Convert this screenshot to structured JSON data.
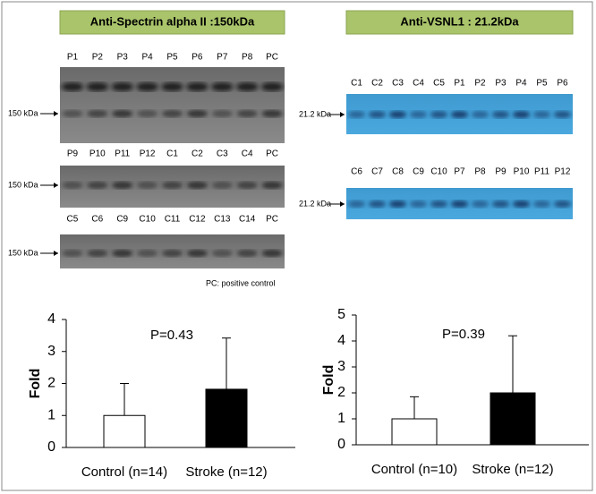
{
  "blots": [
    {
      "header": "Anti-Spectrin alpha II :150kDa",
      "rows": [
        {
          "lanes": [
            "P1",
            "P2",
            "P3",
            "P4",
            "P5",
            "P6",
            "P7",
            "P8",
            "PC"
          ],
          "marker": "150 kDa"
        },
        {
          "lanes": [
            "P9",
            "P10",
            "P11",
            "P12",
            "C1",
            "C2",
            "C3",
            "C4",
            "PC"
          ],
          "marker": "150 kDa"
        },
        {
          "lanes": [
            "C5",
            "C6",
            "C9",
            "C10",
            "C11",
            "C12",
            "C13",
            "C14",
            "PC"
          ],
          "marker": "150 kDa"
        }
      ],
      "note": "PC: positive control"
    },
    {
      "header": "Anti-VSNL1 : 21.2kDa",
      "rows": [
        {
          "lanes": [
            "C1",
            "C2",
            "C3",
            "C4",
            "C5",
            "P1",
            "P2",
            "P3",
            "P4",
            "P5",
            "P6"
          ],
          "marker": "21.2 kDa"
        },
        {
          "lanes": [
            "C6",
            "C7",
            "C8",
            "C9",
            "C10",
            "P7",
            "P8",
            "P9",
            "P10",
            "P11",
            "P12"
          ],
          "marker": "21.2 kDa"
        }
      ]
    }
  ],
  "chart_data": [
    {
      "type": "bar",
      "annotation": "P=0.43",
      "ylabel": "Fold",
      "categories": [
        "Control (n=14)",
        "Stroke (n=12)"
      ],
      "values": [
        1,
        1.82
      ],
      "errors": [
        1.0,
        1.6
      ],
      "colors": [
        "#ffffff",
        "#000000"
      ],
      "ylim": [
        0,
        4
      ],
      "yticks": [
        0,
        1,
        2,
        3,
        4
      ]
    },
    {
      "type": "bar",
      "annotation": "P=0.39",
      "ylabel": "Fold",
      "categories": [
        "Control (n=10)",
        "Stroke (n=12)"
      ],
      "values": [
        1,
        2.0
      ],
      "errors": [
        0.85,
        2.2
      ],
      "colors": [
        "#ffffff",
        "#000000"
      ],
      "ylim": [
        0,
        5
      ],
      "yticks": [
        0,
        1,
        2,
        3,
        4,
        5
      ]
    }
  ]
}
